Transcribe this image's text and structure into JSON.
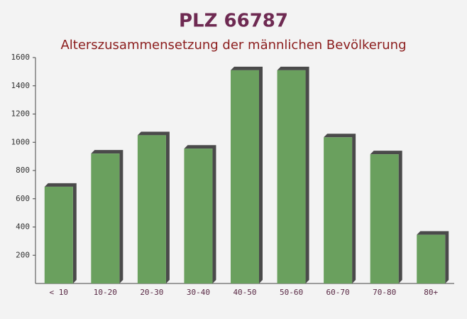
{
  "chart_data": {
    "type": "bar",
    "title": "PLZ 66787",
    "subtitle": "Alterszusammensetzung der männlichen Bevölkerung",
    "categories": [
      "< 10",
      "10-20",
      "20-30",
      "30-40",
      "40-50",
      "50-60",
      "60-70",
      "70-80",
      "80+"
    ],
    "values": [
      685,
      920,
      1050,
      955,
      1510,
      1510,
      1035,
      915,
      345
    ],
    "color": "#6aa05e",
    "ylim": [
      0,
      1600
    ],
    "yticks": [
      200,
      400,
      600,
      800,
      1000,
      1200,
      1400,
      1600
    ]
  }
}
